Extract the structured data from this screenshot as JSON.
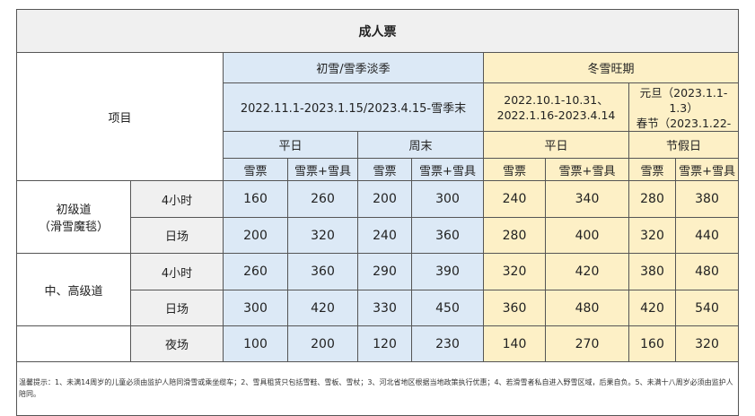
{
  "title": "成人票",
  "item_label": "项目",
  "seasons": {
    "low": "初雪/雪季淡季",
    "peak": "冬雪旺期"
  },
  "dates": {
    "low": "2022.11.1-2023.1.15/2023.4.15-雪季末",
    "peak_weekday_1": "2022.10.1-10.31、",
    "peak_weekday_2": "2022.1.16-2023.4.14",
    "peak_holiday_1": "元旦（2023.1.1-1.3）",
    "peak_holiday_2": "春节（2023.1.22-"
  },
  "day_types": [
    "平日",
    "周末",
    "平日",
    "节假日"
  ],
  "sub_headers": [
    "雪票",
    "雪票+雪具",
    "雪票",
    "雪票+雪具",
    "雪票",
    "雪票+雪具",
    "雪票",
    "雪票+雪具"
  ],
  "groups": [
    {
      "name_1": "初级道",
      "name_2": "（滑雪魔毯）"
    },
    {
      "name_1": "中、高级道",
      "name_2": ""
    },
    {
      "name_1": "",
      "name_2": ""
    }
  ],
  "rows": [
    {
      "label": "4小时",
      "values": [
        "160",
        "260",
        "200",
        "300",
        "240",
        "340",
        "280",
        "380"
      ]
    },
    {
      "label": "日场",
      "values": [
        "200",
        "320",
        "240",
        "360",
        "280",
        "400",
        "320",
        "440"
      ]
    },
    {
      "label": "4小时",
      "values": [
        "260",
        "360",
        "290",
        "390",
        "320",
        "420",
        "380",
        "480"
      ]
    },
    {
      "label": "日场",
      "values": [
        "300",
        "420",
        "330",
        "450",
        "360",
        "480",
        "420",
        "540"
      ]
    },
    {
      "label": "夜场",
      "values": [
        "100",
        "200",
        "120",
        "230",
        "140",
        "270",
        "160",
        "320"
      ]
    }
  ],
  "note": "温馨提示：1、未满14周岁的儿童必须由监护人陪同滑雪或乘坐缆车；2、雪具租赁只包括雪鞋、雪板、雪杖；3、河北省地区根据当地政策执行优惠；4、若滑雪者私自进入野雪区域，后果自负。5、未满十八周岁必须由监护人陪同。",
  "colors": {
    "low_season": "#dce9f6",
    "peak_season": "#fdf0c6",
    "header": "#f0f0f0"
  }
}
